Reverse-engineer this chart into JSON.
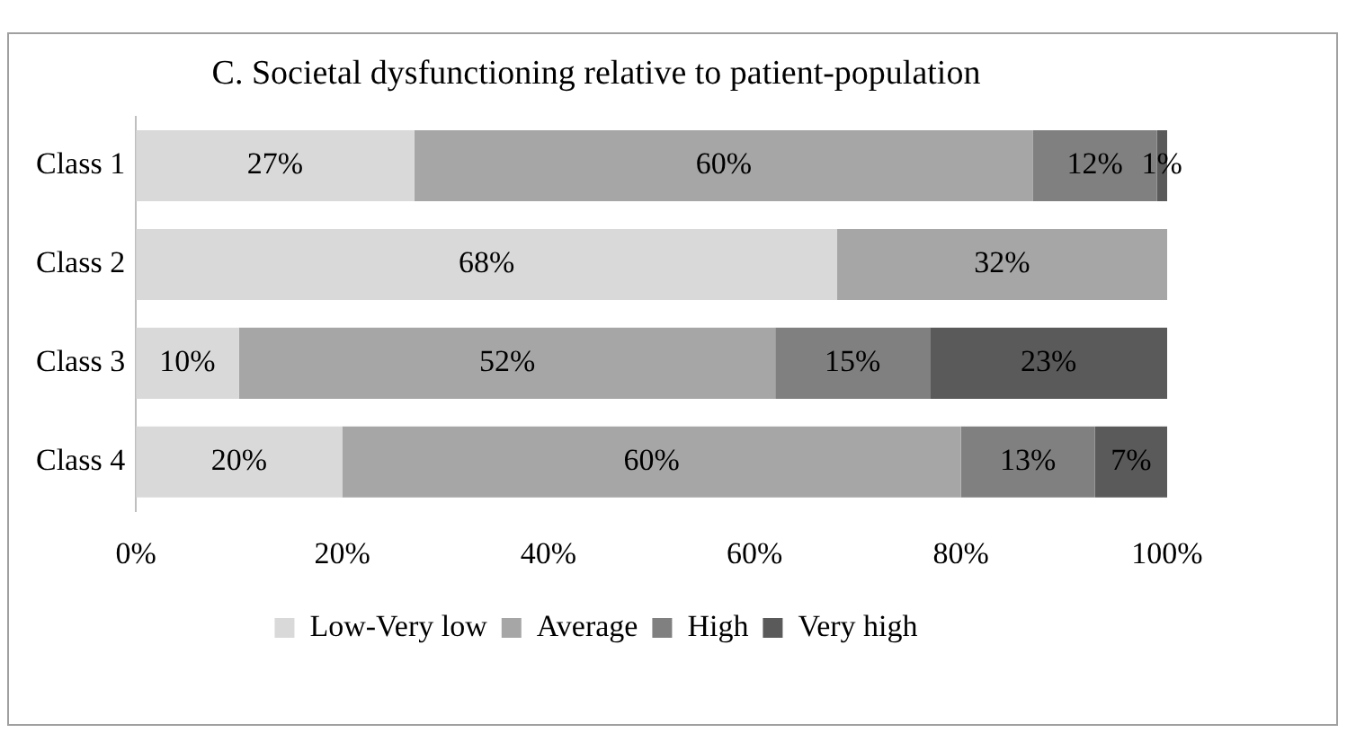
{
  "chart_data": {
    "type": "bar",
    "orientation": "horizontal",
    "stacked": true,
    "title": "C. Societal dysfunctioning relative to patient-population",
    "categories": [
      "Class 1",
      "Class 2",
      "Class 3",
      "Class 4"
    ],
    "series": [
      {
        "name": "Low-Very low",
        "color": "#d9d9d9",
        "values": [
          27,
          68,
          10,
          20
        ],
        "value_labels": [
          "27%",
          "68%",
          "10%",
          "20%"
        ]
      },
      {
        "name": "Average",
        "color": "#a6a6a6",
        "values": [
          60,
          32,
          52,
          60
        ],
        "value_labels": [
          "60%",
          "32%",
          "52%",
          "60%"
        ]
      },
      {
        "name": "High",
        "color": "#808080",
        "values": [
          12,
          null,
          15,
          13
        ],
        "value_labels": [
          "12%",
          null,
          "15%",
          "13%"
        ]
      },
      {
        "name": "Very high",
        "color": "#5a5a5a",
        "values": [
          1,
          null,
          23,
          7
        ],
        "value_labels": [
          "1%",
          null,
          "23%",
          "7%"
        ]
      }
    ],
    "xlim": [
      0,
      100
    ],
    "xticks": [
      {
        "value": 0,
        "label": "0%"
      },
      {
        "value": 20,
        "label": "20%"
      },
      {
        "value": 40,
        "label": "40%"
      },
      {
        "value": 60,
        "label": "60%"
      },
      {
        "value": 80,
        "label": "80%"
      },
      {
        "value": 100,
        "label": "100%"
      }
    ],
    "grid": false,
    "legend": "bottom"
  }
}
